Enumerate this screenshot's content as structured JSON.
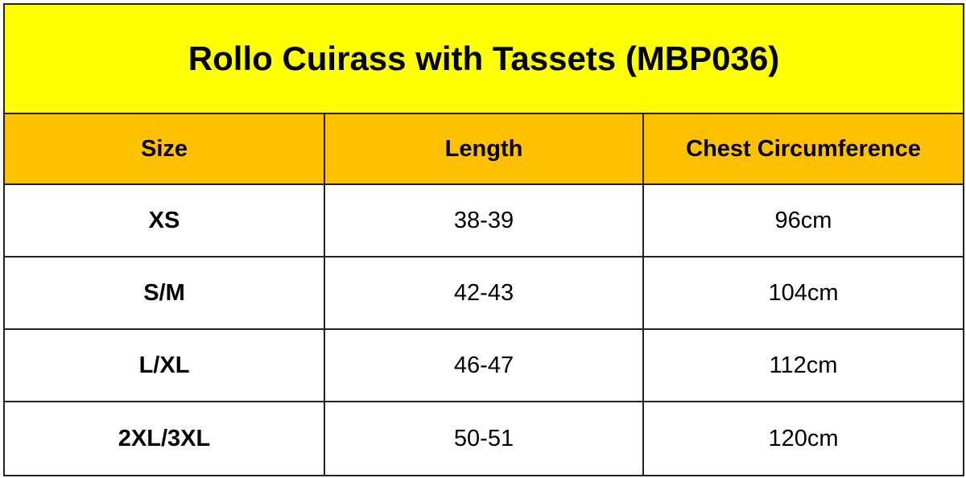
{
  "table": {
    "title": "Rollo Cuirass with Tassets (MBP036)",
    "header": [
      "Size",
      "Length",
      "Chest Circumference"
    ],
    "rows": [
      [
        "XS",
        "38-39",
        "96cm"
      ],
      [
        "S/M",
        "42-43",
        "104cm"
      ],
      [
        "L/XL",
        "46-47",
        "112cm"
      ],
      [
        "2XL/3XL",
        "50-51",
        "120cm"
      ]
    ]
  }
}
